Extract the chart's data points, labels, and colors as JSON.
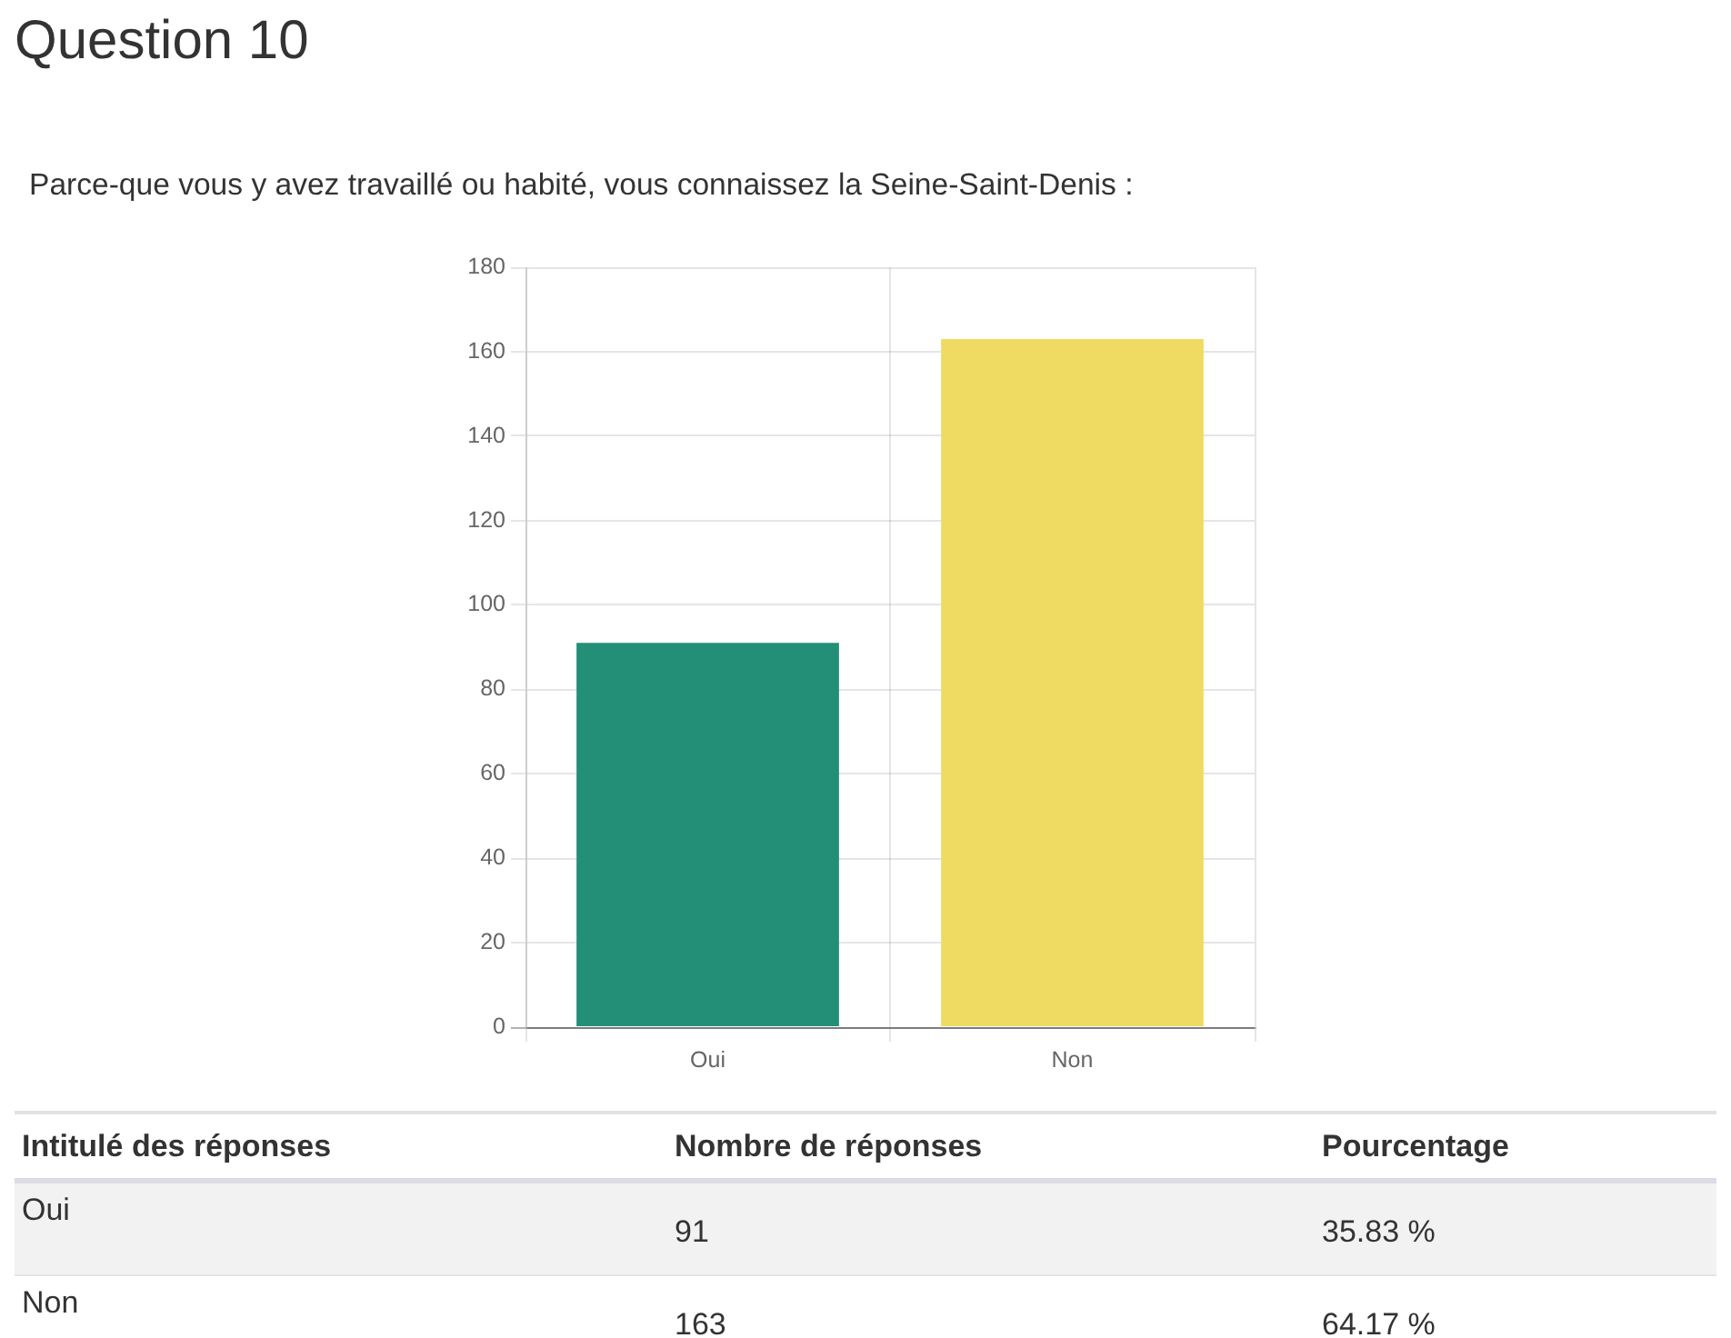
{
  "chart_data": {
    "type": "bar",
    "title": "Question 10",
    "subtitle": "Parce-que vous y avez travaillé ou habité, vous connaissez la Seine-Saint-Denis :",
    "categories": [
      "Oui",
      "Non"
    ],
    "values": [
      91,
      163
    ],
    "colors": [
      "#248f77",
      "#efdb61"
    ],
    "ylim": [
      0,
      180
    ],
    "yticks": [
      0,
      20,
      40,
      60,
      80,
      100,
      120,
      140,
      160,
      180
    ],
    "grid": true,
    "annotations": [
      "Intitulé des réponses",
      "Nombre de réponses",
      "Pourcentage",
      "91",
      "35.83 %",
      "163",
      "64.17 %"
    ]
  }
}
